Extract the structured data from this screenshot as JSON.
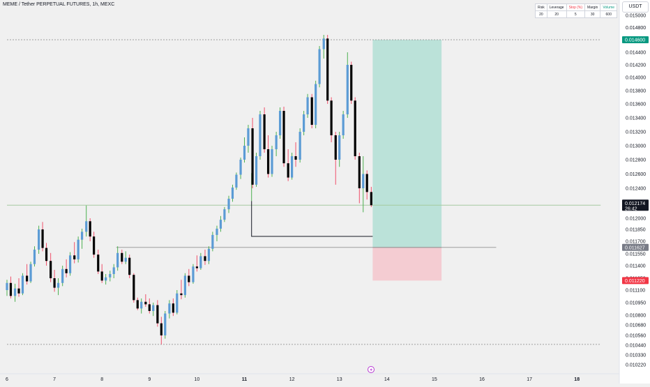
{
  "header": {
    "title": "MEME / Tether PERPETUAL FUTURES, 1h, MEXC",
    "currency": "USDT"
  },
  "position_table": {
    "headers": [
      "Risk",
      "Leverage",
      "Stop (%)",
      "Margin",
      "Volume"
    ],
    "values": [
      "20",
      "20",
      "5",
      "30",
      "600"
    ],
    "header_colors": [
      "#131722",
      "#131722",
      "#f23645",
      "#131722",
      "#089981"
    ]
  },
  "colors": {
    "up": "#5b9bd5",
    "down": "#000000",
    "wick_up": "#4caf50",
    "wick_down": "#ef4f6a",
    "profit_zone": "#b2dfd5",
    "loss_zone": "#f5c6cc",
    "target_tag": "#089981",
    "stop_tag": "#f23645",
    "current_tag": "#131722",
    "entry_tag": "#787b86"
  },
  "chart_data": {
    "type": "candlestick",
    "interval": "1h",
    "x_ticks": [
      "6",
      "7",
      "8",
      "9",
      "10",
      "11",
      "12",
      "13",
      "14",
      "15",
      "16",
      "17",
      "18"
    ],
    "y_ticks": [
      "0.015000",
      "0.014800",
      "0.014600",
      "0.014400",
      "0.014200",
      "0.014000",
      "0.013800",
      "0.013600",
      "0.013400",
      "0.013200",
      "0.013000",
      "0.012800",
      "0.012600",
      "0.012400",
      "0.012200",
      "0.012000",
      "0.011850",
      "0.011700",
      "0.011550",
      "0.011400",
      "0.011250",
      "0.011100",
      "0.010950",
      "0.010800",
      "0.010680",
      "0.010560",
      "0.010440",
      "0.010330",
      "0.010220"
    ],
    "price_tags": {
      "target": "0.014600",
      "current": "0.012174",
      "countdown": "26:42",
      "entry": "0.011627",
      "stop": "0.011220"
    },
    "long_position": {
      "entry": 0.011627,
      "target": 0.0146,
      "stop": 0.01122,
      "start_day": 13.7,
      "end_day": 15.15
    },
    "levels": [
      {
        "price": 0.0146,
        "from_day": 6.0,
        "to_day": 18.5
      },
      {
        "price": 0.012174,
        "from_day": 6.0,
        "to_day": 18.5
      },
      {
        "price": 0.01045,
        "from_day": 6.0,
        "to_day": 18.5
      },
      {
        "price": 0.011627,
        "from_day": 8.3,
        "to_day": 16.3
      }
    ],
    "l_shape": {
      "x0": 11.15,
      "top": 0.01223,
      "bottom": 0.011762,
      "x1": 13.7
    },
    "candles": [
      {
        "day": 6.0,
        "o": 0.0111,
        "h": 0.01123,
        "l": 0.01103,
        "c": 0.01119
      },
      {
        "day": 6.08,
        "o": 0.01119,
        "h": 0.01127,
        "l": 0.011,
        "c": 0.01103
      },
      {
        "day": 6.17,
        "o": 0.01103,
        "h": 0.01118,
        "l": 0.01096,
        "c": 0.01112
      },
      {
        "day": 6.25,
        "o": 0.01112,
        "h": 0.01125,
        "l": 0.01102,
        "c": 0.01106
      },
      {
        "day": 6.33,
        "o": 0.01106,
        "h": 0.01131,
        "l": 0.01104,
        "c": 0.01128
      },
      {
        "day": 6.42,
        "o": 0.01128,
        "h": 0.01142,
        "l": 0.01117,
        "c": 0.01121
      },
      {
        "day": 6.5,
        "o": 0.01121,
        "h": 0.01145,
        "l": 0.01119,
        "c": 0.01142
      },
      {
        "day": 6.58,
        "o": 0.01142,
        "h": 0.01164,
        "l": 0.01139,
        "c": 0.0116
      },
      {
        "day": 6.67,
        "o": 0.0116,
        "h": 0.0119,
        "l": 0.01155,
        "c": 0.01185
      },
      {
        "day": 6.75,
        "o": 0.01185,
        "h": 0.01195,
        "l": 0.01158,
        "c": 0.01162
      },
      {
        "day": 6.83,
        "o": 0.01162,
        "h": 0.01168,
        "l": 0.0114,
        "c": 0.01146
      },
      {
        "day": 6.92,
        "o": 0.01146,
        "h": 0.01156,
        "l": 0.0112,
        "c": 0.01125
      },
      {
        "day": 7.0,
        "o": 0.01125,
        "h": 0.01135,
        "l": 0.01108,
        "c": 0.01113
      },
      {
        "day": 7.08,
        "o": 0.01113,
        "h": 0.01125,
        "l": 0.01104,
        "c": 0.01119
      },
      {
        "day": 7.17,
        "o": 0.01119,
        "h": 0.0114,
        "l": 0.01115,
        "c": 0.01136
      },
      {
        "day": 7.25,
        "o": 0.01136,
        "h": 0.01148,
        "l": 0.01126,
        "c": 0.01131
      },
      {
        "day": 7.33,
        "o": 0.01131,
        "h": 0.01157,
        "l": 0.01128,
        "c": 0.01153
      },
      {
        "day": 7.42,
        "o": 0.01153,
        "h": 0.01169,
        "l": 0.01143,
        "c": 0.01148
      },
      {
        "day": 7.5,
        "o": 0.01148,
        "h": 0.01176,
        "l": 0.01144,
        "c": 0.01172
      },
      {
        "day": 7.58,
        "o": 0.01172,
        "h": 0.01186,
        "l": 0.01161,
        "c": 0.01182
      },
      {
        "day": 7.67,
        "o": 0.01182,
        "h": 0.01217,
        "l": 0.01176,
        "c": 0.01196
      },
      {
        "day": 7.75,
        "o": 0.01196,
        "h": 0.012,
        "l": 0.0117,
        "c": 0.01176
      },
      {
        "day": 7.83,
        "o": 0.01176,
        "h": 0.01182,
        "l": 0.0115,
        "c": 0.01154
      },
      {
        "day": 7.92,
        "o": 0.01154,
        "h": 0.0116,
        "l": 0.0113,
        "c": 0.01133
      },
      {
        "day": 8.0,
        "o": 0.01133,
        "h": 0.01142,
        "l": 0.01119,
        "c": 0.01122
      },
      {
        "day": 8.08,
        "o": 0.01122,
        "h": 0.0113,
        "l": 0.01117,
        "c": 0.01126
      },
      {
        "day": 8.17,
        "o": 0.01126,
        "h": 0.01134,
        "l": 0.01121,
        "c": 0.0113
      },
      {
        "day": 8.25,
        "o": 0.0113,
        "h": 0.01142,
        "l": 0.01125,
        "c": 0.01138
      },
      {
        "day": 8.33,
        "o": 0.01138,
        "h": 0.01164,
        "l": 0.01134,
        "c": 0.01156
      },
      {
        "day": 8.42,
        "o": 0.01156,
        "h": 0.0116,
        "l": 0.01142,
        "c": 0.01145
      },
      {
        "day": 8.5,
        "o": 0.01145,
        "h": 0.01158,
        "l": 0.01142,
        "c": 0.0115
      },
      {
        "day": 8.58,
        "o": 0.0115,
        "h": 0.01154,
        "l": 0.01125,
        "c": 0.01129
      },
      {
        "day": 8.67,
        "o": 0.01129,
        "h": 0.01131,
        "l": 0.01095,
        "c": 0.01098
      },
      {
        "day": 8.75,
        "o": 0.01098,
        "h": 0.01101,
        "l": 0.01086,
        "c": 0.01088
      },
      {
        "day": 8.83,
        "o": 0.01088,
        "h": 0.011,
        "l": 0.01082,
        "c": 0.01096
      },
      {
        "day": 8.92,
        "o": 0.01096,
        "h": 0.01105,
        "l": 0.0109,
        "c": 0.01093
      },
      {
        "day": 9.0,
        "o": 0.01093,
        "h": 0.011,
        "l": 0.01082,
        "c": 0.01085
      },
      {
        "day": 9.08,
        "o": 0.01085,
        "h": 0.01095,
        "l": 0.01079,
        "c": 0.01092
      },
      {
        "day": 9.17,
        "o": 0.01092,
        "h": 0.01098,
        "l": 0.01066,
        "c": 0.0107
      },
      {
        "day": 9.25,
        "o": 0.0107,
        "h": 0.01078,
        "l": 0.01045,
        "c": 0.01056
      },
      {
        "day": 9.33,
        "o": 0.01056,
        "h": 0.01085,
        "l": 0.01052,
        "c": 0.01082
      },
      {
        "day": 9.42,
        "o": 0.01082,
        "h": 0.01098,
        "l": 0.01076,
        "c": 0.01094
      },
      {
        "day": 9.5,
        "o": 0.01094,
        "h": 0.011,
        "l": 0.01079,
        "c": 0.01083
      },
      {
        "day": 9.58,
        "o": 0.01083,
        "h": 0.0111,
        "l": 0.01081,
        "c": 0.01106
      },
      {
        "day": 9.67,
        "o": 0.01106,
        "h": 0.01123,
        "l": 0.01099,
        "c": 0.01104
      },
      {
        "day": 9.75,
        "o": 0.01104,
        "h": 0.01131,
        "l": 0.01101,
        "c": 0.01128
      },
      {
        "day": 9.83,
        "o": 0.01128,
        "h": 0.01136,
        "l": 0.01115,
        "c": 0.0112
      },
      {
        "day": 9.92,
        "o": 0.0112,
        "h": 0.01142,
        "l": 0.01118,
        "c": 0.01139
      },
      {
        "day": 10.0,
        "o": 0.01139,
        "h": 0.01153,
        "l": 0.01133,
        "c": 0.01137
      },
      {
        "day": 10.08,
        "o": 0.01137,
        "h": 0.01156,
        "l": 0.01135,
        "c": 0.01152
      },
      {
        "day": 10.17,
        "o": 0.01152,
        "h": 0.0116,
        "l": 0.01141,
        "c": 0.01146
      },
      {
        "day": 10.25,
        "o": 0.01146,
        "h": 0.01164,
        "l": 0.01142,
        "c": 0.01161
      },
      {
        "day": 10.33,
        "o": 0.01161,
        "h": 0.01182,
        "l": 0.01158,
        "c": 0.01178
      },
      {
        "day": 10.42,
        "o": 0.01178,
        "h": 0.0119,
        "l": 0.0117,
        "c": 0.01186
      },
      {
        "day": 10.5,
        "o": 0.01186,
        "h": 0.01203,
        "l": 0.01182,
        "c": 0.01198
      },
      {
        "day": 10.58,
        "o": 0.01198,
        "h": 0.01215,
        "l": 0.01195,
        "c": 0.01212
      },
      {
        "day": 10.67,
        "o": 0.01212,
        "h": 0.0123,
        "l": 0.01207,
        "c": 0.01226
      },
      {
        "day": 10.75,
        "o": 0.01226,
        "h": 0.01245,
        "l": 0.01222,
        "c": 0.01241
      },
      {
        "day": 10.83,
        "o": 0.01241,
        "h": 0.01262,
        "l": 0.01238,
        "c": 0.01259
      },
      {
        "day": 10.92,
        "o": 0.01259,
        "h": 0.01283,
        "l": 0.01253,
        "c": 0.0128
      },
      {
        "day": 11.0,
        "o": 0.0128,
        "h": 0.01312,
        "l": 0.01276,
        "c": 0.013
      },
      {
        "day": 11.08,
        "o": 0.013,
        "h": 0.0133,
        "l": 0.0129,
        "c": 0.01325
      },
      {
        "day": 11.17,
        "o": 0.01325,
        "h": 0.0134,
        "l": 0.0124,
        "c": 0.01245
      },
      {
        "day": 11.25,
        "o": 0.01245,
        "h": 0.0129,
        "l": 0.01242,
        "c": 0.01285
      },
      {
        "day": 11.33,
        "o": 0.01285,
        "h": 0.0135,
        "l": 0.0128,
        "c": 0.01345
      },
      {
        "day": 11.42,
        "o": 0.01345,
        "h": 0.01355,
        "l": 0.0129,
        "c": 0.01295
      },
      {
        "day": 11.5,
        "o": 0.01295,
        "h": 0.01315,
        "l": 0.01255,
        "c": 0.0126
      },
      {
        "day": 11.58,
        "o": 0.0126,
        "h": 0.013,
        "l": 0.01256,
        "c": 0.01295
      },
      {
        "day": 11.67,
        "o": 0.01295,
        "h": 0.0132,
        "l": 0.01285,
        "c": 0.01315
      },
      {
        "day": 11.75,
        "o": 0.01315,
        "h": 0.01355,
        "l": 0.0131,
        "c": 0.0135
      },
      {
        "day": 11.83,
        "o": 0.0135,
        "h": 0.01356,
        "l": 0.0127,
        "c": 0.01275
      },
      {
        "day": 11.92,
        "o": 0.01275,
        "h": 0.01295,
        "l": 0.0125,
        "c": 0.01255
      },
      {
        "day": 12.0,
        "o": 0.01255,
        "h": 0.0129,
        "l": 0.01252,
        "c": 0.01285
      },
      {
        "day": 12.08,
        "o": 0.01285,
        "h": 0.01305,
        "l": 0.0127,
        "c": 0.0128
      },
      {
        "day": 12.17,
        "o": 0.0128,
        "h": 0.01325,
        "l": 0.01276,
        "c": 0.0132
      },
      {
        "day": 12.25,
        "o": 0.0132,
        "h": 0.0135,
        "l": 0.01315,
        "c": 0.01345
      },
      {
        "day": 12.33,
        "o": 0.01345,
        "h": 0.01375,
        "l": 0.0134,
        "c": 0.0137
      },
      {
        "day": 12.42,
        "o": 0.0137,
        "h": 0.01375,
        "l": 0.01325,
        "c": 0.0133
      },
      {
        "day": 12.5,
        "o": 0.0133,
        "h": 0.01395,
        "l": 0.01325,
        "c": 0.0139
      },
      {
        "day": 12.58,
        "o": 0.0139,
        "h": 0.0145,
        "l": 0.01385,
        "c": 0.01445
      },
      {
        "day": 12.67,
        "o": 0.01445,
        "h": 0.01468,
        "l": 0.0143,
        "c": 0.01462
      },
      {
        "day": 12.75,
        "o": 0.01462,
        "h": 0.01468,
        "l": 0.0136,
        "c": 0.01365
      },
      {
        "day": 12.83,
        "o": 0.01365,
        "h": 0.0137,
        "l": 0.01305,
        "c": 0.01315
      },
      {
        "day": 12.92,
        "o": 0.01315,
        "h": 0.0132,
        "l": 0.01245,
        "c": 0.0128
      },
      {
        "day": 13.0,
        "o": 0.0128,
        "h": 0.0132,
        "l": 0.0127,
        "c": 0.01315
      },
      {
        "day": 13.08,
        "o": 0.01315,
        "h": 0.0135,
        "l": 0.0131,
        "c": 0.01345
      },
      {
        "day": 13.17,
        "o": 0.01345,
        "h": 0.0144,
        "l": 0.0134,
        "c": 0.0142
      },
      {
        "day": 13.25,
        "o": 0.0142,
        "h": 0.01425,
        "l": 0.0136,
        "c": 0.01365
      },
      {
        "day": 13.33,
        "o": 0.01365,
        "h": 0.0137,
        "l": 0.0128,
        "c": 0.01285
      },
      {
        "day": 13.42,
        "o": 0.01285,
        "h": 0.0129,
        "l": 0.0122,
        "c": 0.0124
      },
      {
        "day": 13.5,
        "o": 0.0124,
        "h": 0.01285,
        "l": 0.01208,
        "c": 0.0126
      },
      {
        "day": 13.58,
        "o": 0.0126,
        "h": 0.01265,
        "l": 0.01225,
        "c": 0.01235
      },
      {
        "day": 13.67,
        "o": 0.01235,
        "h": 0.01242,
        "l": 0.01215,
        "c": 0.012174
      }
    ]
  }
}
